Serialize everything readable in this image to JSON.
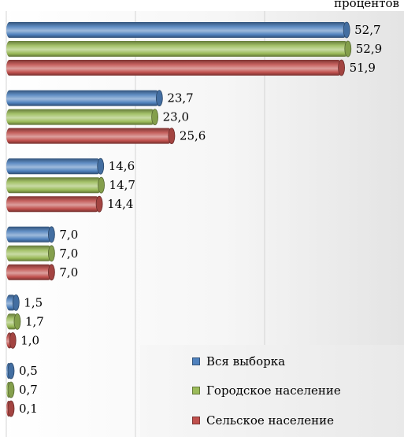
{
  "chart_data": {
    "type": "bar",
    "orientation": "horizontal",
    "unit_label": "процентов",
    "categories": [
      "",
      "",
      "",
      "",
      "",
      ""
    ],
    "series": [
      {
        "name": "Вся выборка",
        "color": "#4f81bd",
        "values": [
          52.7,
          23.7,
          14.6,
          7.0,
          1.5,
          0.5
        ],
        "labels": [
          "52,7",
          "23,7",
          "14,6",
          "7,0",
          "1,5",
          "0,5"
        ]
      },
      {
        "name": "Городское население",
        "color": "#9bbb59",
        "values": [
          52.9,
          23.0,
          14.7,
          7.0,
          1.7,
          0.7
        ],
        "labels": [
          "52,9",
          "23,0",
          "14,7",
          "7,0",
          "1,7",
          "0,7"
        ]
      },
      {
        "name": "Сельское население",
        "color": "#c0504d",
        "values": [
          51.9,
          25.6,
          14.4,
          7.0,
          1.0,
          0.1
        ],
        "labels": [
          "51,9",
          "25,6",
          "14,4",
          "7,0",
          "1,0",
          "0,1"
        ]
      }
    ],
    "xlim": [
      0,
      60
    ],
    "grid": true,
    "legend_position": "bottom-right"
  }
}
